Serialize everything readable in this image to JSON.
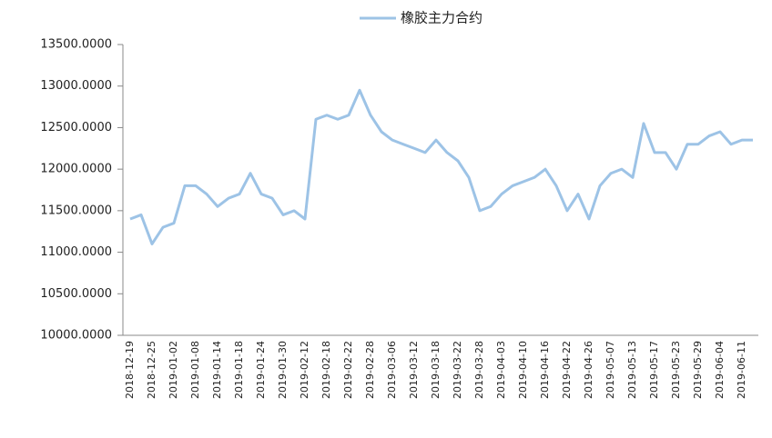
{
  "chart_data": {
    "type": "line",
    "series": [
      {
        "name": "橡胶主力合约",
        "color": "#9dc3e6",
        "values": [
          11400,
          11450,
          11100,
          11300,
          11350,
          11800,
          11800,
          11700,
          11550,
          11650,
          11700,
          11950,
          11700,
          11650,
          11450,
          11500,
          11400,
          12600,
          12650,
          12600,
          12650,
          12950,
          12650,
          12450,
          12350,
          12300,
          12250,
          12200,
          12350,
          12200,
          12100,
          11900,
          11500,
          11550,
          11700,
          11800,
          11850,
          11900,
          12000,
          11800,
          11500,
          11700,
          11400,
          11800,
          11950,
          12000,
          11900,
          12550,
          12200,
          12200,
          12000,
          12300,
          12300,
          12400,
          12450,
          12300,
          12350,
          12350
        ]
      }
    ],
    "categories": [
      "2018-12-19",
      null,
      "2018-12-25",
      null,
      "2019-01-02",
      null,
      "2019-01-08",
      null,
      "2019-01-14",
      null,
      "2019-01-18",
      null,
      "2019-01-24",
      null,
      "2019-01-30",
      null,
      "2019-02-12",
      null,
      "2019-02-18",
      null,
      "2019-02-22",
      null,
      "2019-02-28",
      null,
      "2019-03-06",
      null,
      "2019-03-12",
      null,
      "2019-03-18",
      null,
      "2019-03-22",
      null,
      "2019-03-28",
      null,
      "2019-04-03",
      null,
      "2019-04-10",
      null,
      "2019-04-16",
      null,
      "2019-04-22",
      null,
      "2019-04-26",
      null,
      "2019-05-07",
      null,
      "2019-05-13",
      null,
      "2019-05-17",
      null,
      "2019-05-23",
      null,
      "2019-05-29",
      null,
      "2019-06-04",
      null,
      "2019-06-11",
      null
    ],
    "ylim": [
      10000,
      13500
    ],
    "yticks": [
      {
        "value": 10000,
        "label": "10000.0000"
      },
      {
        "value": 10500,
        "label": "10500.0000"
      },
      {
        "value": 11000,
        "label": "11000.0000"
      },
      {
        "value": 11500,
        "label": "11500.0000"
      },
      {
        "value": 12000,
        "label": "12000.0000"
      },
      {
        "value": 12500,
        "label": "12500.0000"
      },
      {
        "value": 13000,
        "label": "13000.0000"
      },
      {
        "value": 13500,
        "label": "13500.0000"
      }
    ],
    "legend": "top",
    "grid": false
  }
}
